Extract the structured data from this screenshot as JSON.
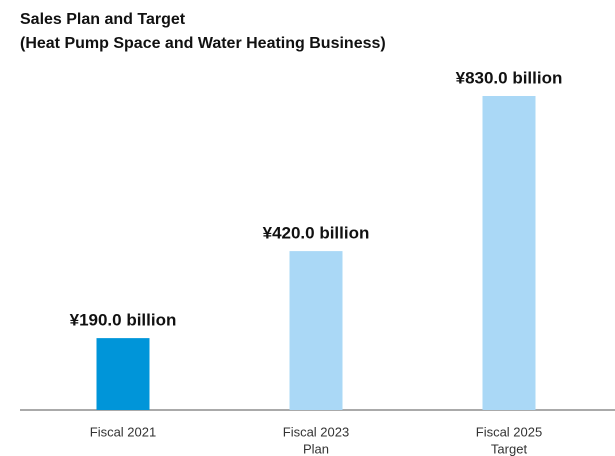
{
  "chart_data": {
    "type": "bar",
    "title": "Sales Plan and Target",
    "subtitle": "(Heat Pump Space and Water Heating Business)",
    "categories": [
      [
        "Fiscal 2021"
      ],
      [
        "Fiscal 2023",
        "Plan"
      ],
      [
        "Fiscal 2025",
        "Target"
      ]
    ],
    "values": [
      190,
      420,
      830
    ],
    "value_labels": [
      "¥190.0 billion",
      "¥420.0 billion",
      "¥830.0 billion"
    ],
    "colors": [
      "#0095d9",
      "#aad8f6",
      "#aad8f6"
    ]
  }
}
